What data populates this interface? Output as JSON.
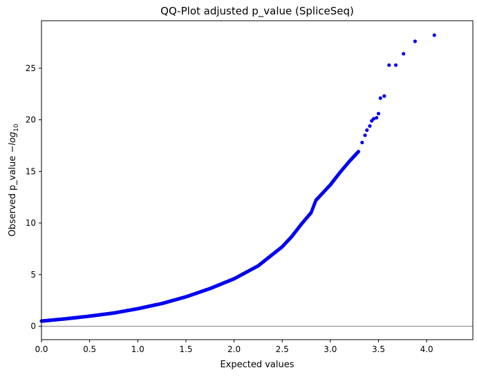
{
  "chart_data": {
    "type": "scatter",
    "title": "QQ-Plot adjusted p_value (SpliceSeq)",
    "xlabel": "Expected values",
    "ylabel_main": "Observed p_value −",
    "ylabel_log": "log",
    "ylabel_sub": "10",
    "xlim": [
      0,
      4.48
    ],
    "ylim": [
      -1.3,
      29.6
    ],
    "x_ticks": [
      0.0,
      0.5,
      1.0,
      1.5,
      2.0,
      2.5,
      3.0,
      3.5,
      4.0
    ],
    "x_tick_labels": [
      "0.0",
      "0.5",
      "1.0",
      "1.5",
      "2.0",
      "2.5",
      "3.0",
      "3.5",
      "4.0"
    ],
    "y_ticks": [
      0,
      5,
      10,
      15,
      20,
      25
    ],
    "y_tick_labels": [
      "0",
      "5",
      "10",
      "15",
      "20",
      "25"
    ],
    "reference_line_y": 0,
    "point_color": "#0000ee",
    "reference_line_color": "#808080",
    "grid": false,
    "curve_points": [
      [
        0.0,
        0.5
      ],
      [
        0.25,
        0.72
      ],
      [
        0.5,
        0.98
      ],
      [
        0.75,
        1.28
      ],
      [
        1.0,
        1.7
      ],
      [
        1.25,
        2.2
      ],
      [
        1.5,
        2.85
      ],
      [
        1.75,
        3.65
      ],
      [
        2.0,
        4.6
      ],
      [
        2.25,
        5.85
      ],
      [
        2.5,
        7.7
      ],
      [
        2.6,
        8.7
      ],
      [
        2.7,
        9.9
      ],
      [
        2.8,
        11.0
      ],
      [
        2.85,
        12.2
      ],
      [
        2.95,
        13.2
      ],
      [
        3.0,
        13.7
      ],
      [
        3.1,
        14.9
      ],
      [
        3.2,
        16.0
      ],
      [
        3.3,
        17.0
      ]
    ],
    "top_points": [
      [
        3.33,
        17.8
      ],
      [
        3.36,
        18.5
      ],
      [
        3.38,
        19.0
      ],
      [
        3.41,
        19.4
      ],
      [
        3.43,
        19.9
      ],
      [
        3.45,
        20.1
      ],
      [
        3.48,
        20.2
      ],
      [
        3.5,
        20.6
      ],
      [
        3.52,
        22.1
      ],
      [
        3.56,
        22.3
      ],
      [
        3.61,
        25.3
      ],
      [
        3.68,
        25.3
      ],
      [
        3.76,
        26.4
      ],
      [
        3.88,
        27.6
      ],
      [
        4.08,
        28.2
      ]
    ]
  }
}
